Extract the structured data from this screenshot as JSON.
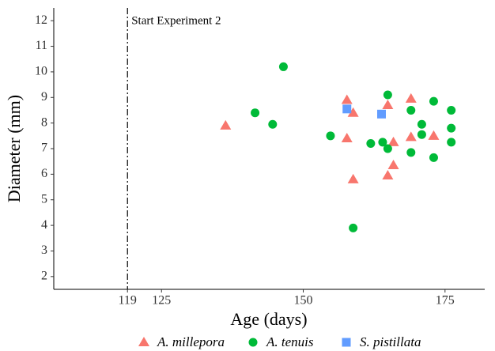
{
  "chart_data": {
    "type": "scatter",
    "xlabel": "Age (days)",
    "ylabel": "Diameter (mm)",
    "xlim": [
      106,
      182
    ],
    "xticks": [
      119,
      125,
      150,
      175
    ],
    "ylim": [
      1.5,
      12.5
    ],
    "yticks": [
      2,
      3,
      4,
      5,
      6,
      7,
      8,
      9,
      10,
      11,
      12
    ],
    "vline": {
      "x": 119,
      "label": "Start Experiment 2"
    },
    "legend": "bottom",
    "series": [
      {
        "name": "A. millepora",
        "color": "#F8766D",
        "marker": "triangle",
        "x": [
          136.3,
          157.7,
          158.8,
          157.7,
          158.8,
          164.9,
          165.9,
          165.9,
          164.9,
          169.0,
          169.0,
          173.0
        ],
        "values": [
          7.9,
          8.9,
          8.4,
          7.4,
          5.8,
          8.7,
          7.25,
          6.35,
          5.95,
          8.95,
          7.45,
          7.5
        ]
      },
      {
        "name": "A. tenuis",
        "color": "#00BA38",
        "marker": "circle",
        "x": [
          141.5,
          144.6,
          146.5,
          154.8,
          158.8,
          161.9,
          164.0,
          164.9,
          164.9,
          169.0,
          169.0,
          170.9,
          170.9,
          173.0,
          173.0,
          176.1,
          176.1,
          176.1
        ],
        "values": [
          8.4,
          7.95,
          10.2,
          7.5,
          3.9,
          7.2,
          7.25,
          9.1,
          7.0,
          8.5,
          6.85,
          7.95,
          7.55,
          8.85,
          6.65,
          8.5,
          7.8,
          7.25
        ]
      },
      {
        "name": "S. pistillata",
        "color": "#619CFF",
        "marker": "square",
        "x": [
          157.7,
          163.8
        ],
        "values": [
          8.55,
          8.35
        ]
      }
    ]
  }
}
